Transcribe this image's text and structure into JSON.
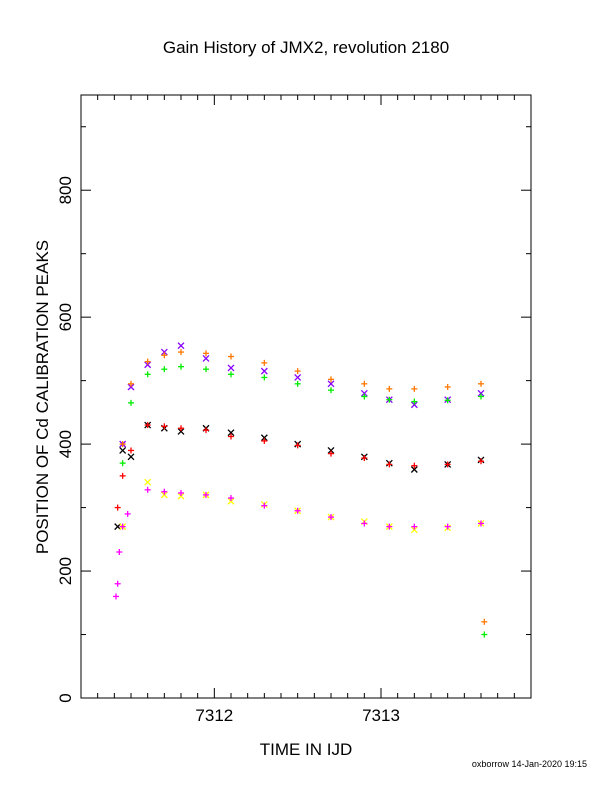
{
  "chart_data": {
    "type": "scatter",
    "title": "Gain History of JMX2, revolution 2180",
    "xlabel": "TIME IN IJD",
    "ylabel": "POSITION OF Cd CALIBRATION PEAKS",
    "xlim": [
      7311.2,
      7313.9
    ],
    "ylim": [
      0,
      950
    ],
    "x_ticks": [
      7312,
      7313
    ],
    "x_tick_labels": [
      "7312",
      "7313"
    ],
    "y_ticks": [
      0,
      200,
      400,
      600,
      800
    ],
    "y_tick_labels": [
      "0",
      "200",
      "400",
      "600",
      "800"
    ],
    "grid": false,
    "legend": "none",
    "footer": "oxborrow 14-Jan-2020 19:15",
    "series": [
      {
        "color": "#8800ff",
        "marker": "x",
        "points": [
          [
            7311.45,
            400
          ],
          [
            7311.5,
            490
          ],
          [
            7311.6,
            525
          ],
          [
            7311.7,
            545
          ],
          [
            7311.8,
            555
          ],
          [
            7311.95,
            535
          ],
          [
            7312.1,
            520
          ],
          [
            7312.3,
            515
          ],
          [
            7312.5,
            505
          ],
          [
            7312.7,
            495
          ],
          [
            7312.9,
            480
          ],
          [
            7313.05,
            470
          ],
          [
            7313.2,
            462
          ],
          [
            7313.4,
            470
          ],
          [
            7313.6,
            480
          ]
        ]
      },
      {
        "color": "#ff7700",
        "marker": "+",
        "points": [
          [
            7311.45,
            400
          ],
          [
            7311.5,
            495
          ],
          [
            7311.6,
            530
          ],
          [
            7311.7,
            540
          ],
          [
            7311.8,
            545
          ],
          [
            7311.95,
            543
          ],
          [
            7312.1,
            538
          ],
          [
            7312.3,
            528
          ],
          [
            7312.5,
            515
          ],
          [
            7312.7,
            502
          ],
          [
            7312.9,
            495
          ],
          [
            7313.05,
            487
          ],
          [
            7313.2,
            487
          ],
          [
            7313.4,
            490
          ],
          [
            7313.6,
            495
          ],
          [
            7313.62,
            120
          ]
        ]
      },
      {
        "color": "#00ee00",
        "marker": "+",
        "points": [
          [
            7311.45,
            370
          ],
          [
            7311.5,
            465
          ],
          [
            7311.6,
            510
          ],
          [
            7311.7,
            518
          ],
          [
            7311.8,
            522
          ],
          [
            7311.95,
            518
          ],
          [
            7312.1,
            510
          ],
          [
            7312.3,
            505
          ],
          [
            7312.5,
            495
          ],
          [
            7312.7,
            485
          ],
          [
            7312.9,
            475
          ],
          [
            7313.05,
            470
          ],
          [
            7313.2,
            467
          ],
          [
            7313.4,
            469
          ],
          [
            7313.6,
            475
          ],
          [
            7313.62,
            100
          ]
        ]
      },
      {
        "color": "#000000",
        "marker": "x",
        "points": [
          [
            7311.42,
            270
          ],
          [
            7311.45,
            390
          ],
          [
            7311.5,
            380
          ],
          [
            7311.6,
            430
          ],
          [
            7311.7,
            425
          ],
          [
            7311.8,
            420
          ],
          [
            7311.95,
            425
          ],
          [
            7312.1,
            418
          ],
          [
            7312.3,
            410
          ],
          [
            7312.5,
            400
          ],
          [
            7312.7,
            390
          ],
          [
            7312.9,
            380
          ],
          [
            7313.05,
            370
          ],
          [
            7313.2,
            360
          ],
          [
            7313.4,
            368
          ],
          [
            7313.6,
            375
          ]
        ]
      },
      {
        "color": "#ff0000",
        "marker": "+",
        "points": [
          [
            7311.42,
            300
          ],
          [
            7311.45,
            350
          ],
          [
            7311.5,
            390
          ],
          [
            7311.6,
            430
          ],
          [
            7311.7,
            428
          ],
          [
            7311.8,
            425
          ],
          [
            7311.95,
            422
          ],
          [
            7312.1,
            412
          ],
          [
            7312.3,
            405
          ],
          [
            7312.5,
            398
          ],
          [
            7312.7,
            385
          ],
          [
            7312.9,
            378
          ],
          [
            7313.05,
            368
          ],
          [
            7313.2,
            366
          ],
          [
            7313.4,
            368
          ],
          [
            7313.6,
            373
          ]
        ]
      },
      {
        "color": "#ffff00",
        "marker": "x",
        "points": [
          [
            7311.45,
            270
          ],
          [
            7311.6,
            340
          ],
          [
            7311.7,
            320
          ],
          [
            7311.8,
            318
          ],
          [
            7311.95,
            320
          ],
          [
            7312.1,
            310
          ],
          [
            7312.3,
            305
          ],
          [
            7312.5,
            295
          ],
          [
            7312.7,
            285
          ],
          [
            7312.9,
            278
          ],
          [
            7313.05,
            270
          ],
          [
            7313.2,
            265
          ],
          [
            7313.4,
            268
          ],
          [
            7313.6,
            275
          ]
        ]
      },
      {
        "color": "#ff00ff",
        "marker": "+",
        "points": [
          [
            7311.41,
            160
          ],
          [
            7311.42,
            180
          ],
          [
            7311.43,
            230
          ],
          [
            7311.45,
            270
          ],
          [
            7311.48,
            290
          ],
          [
            7311.6,
            328
          ],
          [
            7311.7,
            325
          ],
          [
            7311.8,
            323
          ],
          [
            7311.95,
            320
          ],
          [
            7312.1,
            315
          ],
          [
            7312.3,
            303
          ],
          [
            7312.5,
            295
          ],
          [
            7312.7,
            285
          ],
          [
            7312.9,
            275
          ],
          [
            7313.05,
            270
          ],
          [
            7313.2,
            270
          ],
          [
            7313.4,
            270
          ],
          [
            7313.6,
            275
          ]
        ]
      }
    ]
  }
}
